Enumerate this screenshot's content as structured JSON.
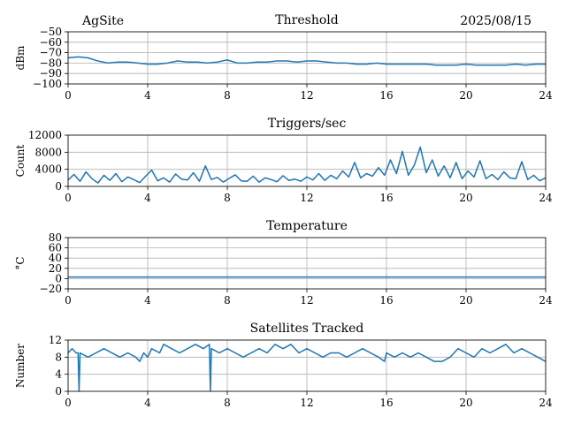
{
  "header": {
    "site": "AgSite",
    "date": "2025/08/15"
  },
  "colors": {
    "series": "#1f77b4",
    "grid": "#b0b0b0"
  },
  "chart_data": [
    {
      "id": "threshold",
      "type": "line",
      "title": "Threshold",
      "ylabel": "dBm",
      "xlim": [
        0,
        24
      ],
      "ylim": [
        -100,
        -50
      ],
      "xticks": [
        0,
        4,
        8,
        12,
        16,
        20,
        24
      ],
      "yticks": [
        -100,
        -90,
        -80,
        -70,
        -60,
        -50
      ],
      "ytick_labels": [
        "−100",
        "−90",
        "−80",
        "−70",
        "−60",
        "−50"
      ],
      "grid": true,
      "series": [
        {
          "x": [
            0,
            0.5,
            1,
            1.5,
            2,
            2.5,
            3,
            3.5,
            4,
            4.5,
            5,
            5.5,
            6,
            6.5,
            7,
            7.5,
            8,
            8.5,
            9,
            9.5,
            10,
            10.5,
            11,
            11.5,
            12,
            12.5,
            13,
            13.5,
            14,
            14.5,
            15,
            15.5,
            16,
            16.5,
            17,
            17.5,
            18,
            18.5,
            19,
            19.5,
            20,
            20.5,
            21,
            21.5,
            22,
            22.5,
            23,
            23.5,
            24
          ],
          "y": [
            -75,
            -74,
            -75,
            -78,
            -80,
            -79,
            -79,
            -80,
            -81,
            -81,
            -80,
            -78,
            -79,
            -79,
            -80,
            -79,
            -77,
            -80,
            -80,
            -79,
            -79,
            -78,
            -78,
            -79,
            -78,
            -78,
            -79,
            -80,
            -80,
            -81,
            -81,
            -80,
            -81,
            -81,
            -81,
            -81,
            -81,
            -82,
            -82,
            -82,
            -81,
            -82,
            -82,
            -82,
            -82,
            -81,
            -82,
            -81,
            -81
          ]
        }
      ]
    },
    {
      "id": "triggers",
      "type": "line",
      "title": "Triggers/sec",
      "ylabel": "Count",
      "xlim": [
        0,
        24
      ],
      "ylim": [
        0,
        12000
      ],
      "xticks": [
        0,
        4,
        8,
        12,
        16,
        20,
        24
      ],
      "yticks": [
        0,
        4000,
        8000,
        12000
      ],
      "ytick_labels": [
        "0",
        "4000",
        "8000",
        "12000"
      ],
      "grid": true,
      "series": [
        {
          "x": [
            0,
            0.3,
            0.6,
            0.9,
            1.2,
            1.5,
            1.8,
            2.1,
            2.4,
            2.7,
            3,
            3.3,
            3.6,
            3.9,
            4.2,
            4.5,
            4.8,
            5.1,
            5.4,
            5.7,
            6,
            6.3,
            6.6,
            6.9,
            7.2,
            7.5,
            7.8,
            8.1,
            8.4,
            8.7,
            9,
            9.3,
            9.6,
            9.9,
            10.2,
            10.5,
            10.8,
            11.1,
            11.4,
            11.7,
            12,
            12.3,
            12.6,
            12.9,
            13.2,
            13.5,
            13.8,
            14.1,
            14.4,
            14.7,
            15,
            15.3,
            15.6,
            15.9,
            16.2,
            16.5,
            16.8,
            17.1,
            17.4,
            17.7,
            18,
            18.3,
            18.6,
            18.9,
            19.2,
            19.5,
            19.8,
            20.1,
            20.4,
            20.7,
            21,
            21.3,
            21.6,
            21.9,
            22.2,
            22.5,
            22.8,
            23.1,
            23.4,
            23.7,
            24
          ],
          "y": [
            1500,
            2800,
            1200,
            3400,
            1800,
            800,
            2600,
            1400,
            3000,
            1100,
            2200,
            1600,
            900,
            2400,
            3800,
            1300,
            2000,
            1000,
            2900,
            1700,
            1500,
            3200,
            1200,
            4800,
            1600,
            2100,
            1000,
            1900,
            2700,
            1300,
            1200,
            2400,
            1000,
            2000,
            1600,
            1100,
            2500,
            1400,
            1700,
            1200,
            2200,
            1500,
            3000,
            1400,
            2600,
            1800,
            3600,
            2200,
            5600,
            2000,
            3000,
            2400,
            4400,
            2600,
            6200,
            3000,
            8200,
            2600,
            5000,
            9200,
            3200,
            6200,
            2400,
            4800,
            2000,
            5600,
            1800,
            3600,
            2200,
            6000,
            1800,
            2800,
            1600,
            3400,
            2000,
            1800,
            5800,
            1600,
            2600,
            1300,
            2000
          ]
        }
      ]
    },
    {
      "id": "temperature",
      "type": "line",
      "title": "Temperature",
      "ylabel": "°C",
      "xlim": [
        0,
        24
      ],
      "ylim": [
        -20,
        80
      ],
      "xticks": [
        0,
        4,
        8,
        12,
        16,
        20,
        24
      ],
      "yticks": [
        -20,
        0,
        20,
        40,
        60,
        80
      ],
      "ytick_labels": [
        "−20",
        "0",
        "20",
        "40",
        "60",
        "80"
      ],
      "grid": true,
      "series": [
        {
          "x": [
            0,
            24
          ],
          "y": [
            3,
            3
          ]
        }
      ]
    },
    {
      "id": "satellites",
      "type": "line",
      "title": "Satellites Tracked",
      "ylabel": "Number",
      "xlim": [
        0,
        24
      ],
      "ylim": [
        0,
        12
      ],
      "xticks": [
        0,
        4,
        8,
        12,
        16,
        20,
        24
      ],
      "yticks": [
        0,
        4,
        8,
        12
      ],
      "ytick_labels": [
        "0",
        "4",
        "8",
        "12"
      ],
      "grid": true,
      "series": [
        {
          "x": [
            0,
            0.2,
            0.4,
            0.5,
            0.55,
            0.6,
            1.0,
            1.4,
            1.8,
            2.2,
            2.6,
            3.0,
            3.4,
            3.6,
            3.8,
            4.0,
            4.2,
            4.6,
            4.8,
            5.2,
            5.6,
            6.0,
            6.4,
            6.8,
            7.1,
            7.15,
            7.2,
            7.6,
            8.0,
            8.4,
            8.8,
            9.2,
            9.6,
            10.0,
            10.4,
            10.8,
            11.2,
            11.6,
            12.0,
            12.4,
            12.8,
            13.2,
            13.6,
            14.0,
            14.4,
            14.8,
            15.2,
            15.6,
            15.9,
            16.0,
            16.4,
            16.8,
            17.2,
            17.6,
            18.0,
            18.4,
            18.8,
            19.2,
            19.6,
            20.0,
            20.4,
            20.8,
            21.2,
            21.6,
            22.0,
            22.4,
            22.8,
            23.2,
            23.6,
            24.0
          ],
          "y": [
            9,
            10,
            9,
            9,
            0,
            9,
            8,
            9,
            10,
            9,
            8,
            9,
            8,
            7,
            9,
            8,
            10,
            9,
            11,
            10,
            9,
            10,
            11,
            10,
            11,
            0,
            10,
            9,
            10,
            9,
            8,
            9,
            10,
            9,
            11,
            10,
            11,
            9,
            10,
            9,
            8,
            9,
            9,
            8,
            9,
            10,
            9,
            8,
            7,
            9,
            8,
            9,
            8,
            9,
            8,
            7,
            7,
            8,
            10,
            9,
            8,
            10,
            9,
            10,
            11,
            9,
            10,
            9,
            8,
            7
          ]
        }
      ]
    }
  ]
}
